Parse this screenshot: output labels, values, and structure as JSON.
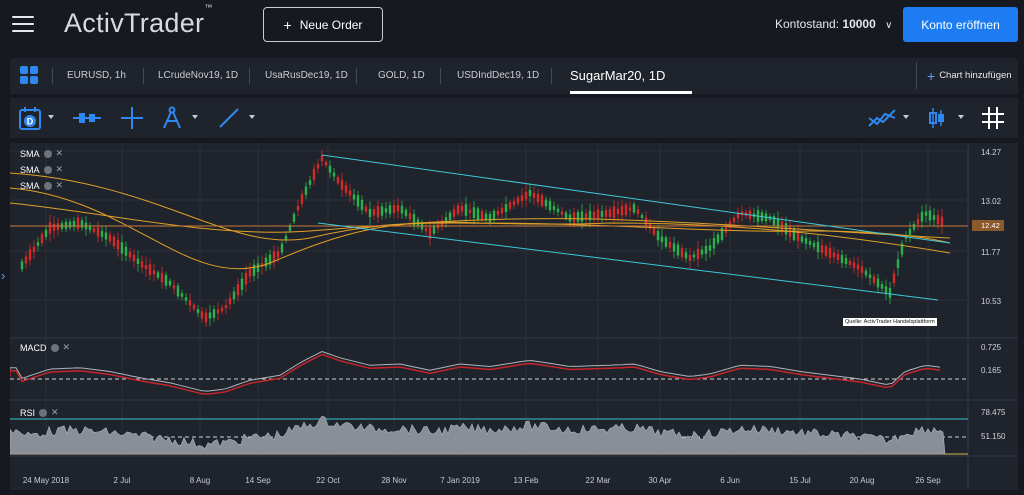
{
  "topbar": {
    "logo": "ActivTrader",
    "logo_tm": "™",
    "new_order": "Neue Order",
    "balance_label": "Kontostand:",
    "balance_value": "10000",
    "open_account": "Konto eröffnen"
  },
  "tabs": [
    {
      "label": "EURUSD, 1h"
    },
    {
      "label": "LCrudeNov19, 1D"
    },
    {
      "label": "UsaRusDec19, 1D"
    },
    {
      "label": "GOLD, 1D"
    },
    {
      "label": "USDIndDec19, 1D"
    },
    {
      "label": "SugarMar20, 1D"
    }
  ],
  "active_tab": "SugarMar20, 1D",
  "add_chart": "Chart hinzufügen",
  "toolbar": {
    "date_icon_letter": "D",
    "icons": [
      "calendar-icon",
      "crosshair-icon",
      "compass-icon",
      "line-draw-icon",
      "indicator-icon",
      "candle-type-icon",
      "grid-icon"
    ]
  },
  "legends": {
    "sma1": "SMA",
    "sma2": "SMA",
    "sma3": "SMA",
    "macd": "MACD",
    "rsi": "RSI"
  },
  "price_axis": {
    "ticks": [
      "14.27",
      "13.02",
      "11.77",
      "10.53"
    ],
    "current_price": "12.42"
  },
  "macd_axis": {
    "ticks": [
      "0.725",
      "0.165"
    ]
  },
  "rsi_axis": {
    "ticks": [
      "78.475",
      "51.150"
    ]
  },
  "x_axis": {
    "labels": [
      "24 May 2018",
      "2 Jul",
      "8 Aug",
      "14 Sep",
      "22 Oct",
      "28 Nov",
      "7 Jan 2019",
      "13 Feb",
      "22 Mar",
      "30 Apr",
      "6 Jun",
      "15 Jul",
      "20 Aug",
      "26 Sep"
    ]
  },
  "source_note": "Quelle: ActivTrader Handelsplattform",
  "colors": {
    "accent": "#1e7cf2",
    "up_candle": "#2bb24c",
    "down_candle": "#d42a2a",
    "channel": "#3fc8d9",
    "sma": "#e0a028",
    "macd_red": "#c4262a",
    "rsi_band": "#34c6d6",
    "rsi_low": "#d4b84a"
  }
}
